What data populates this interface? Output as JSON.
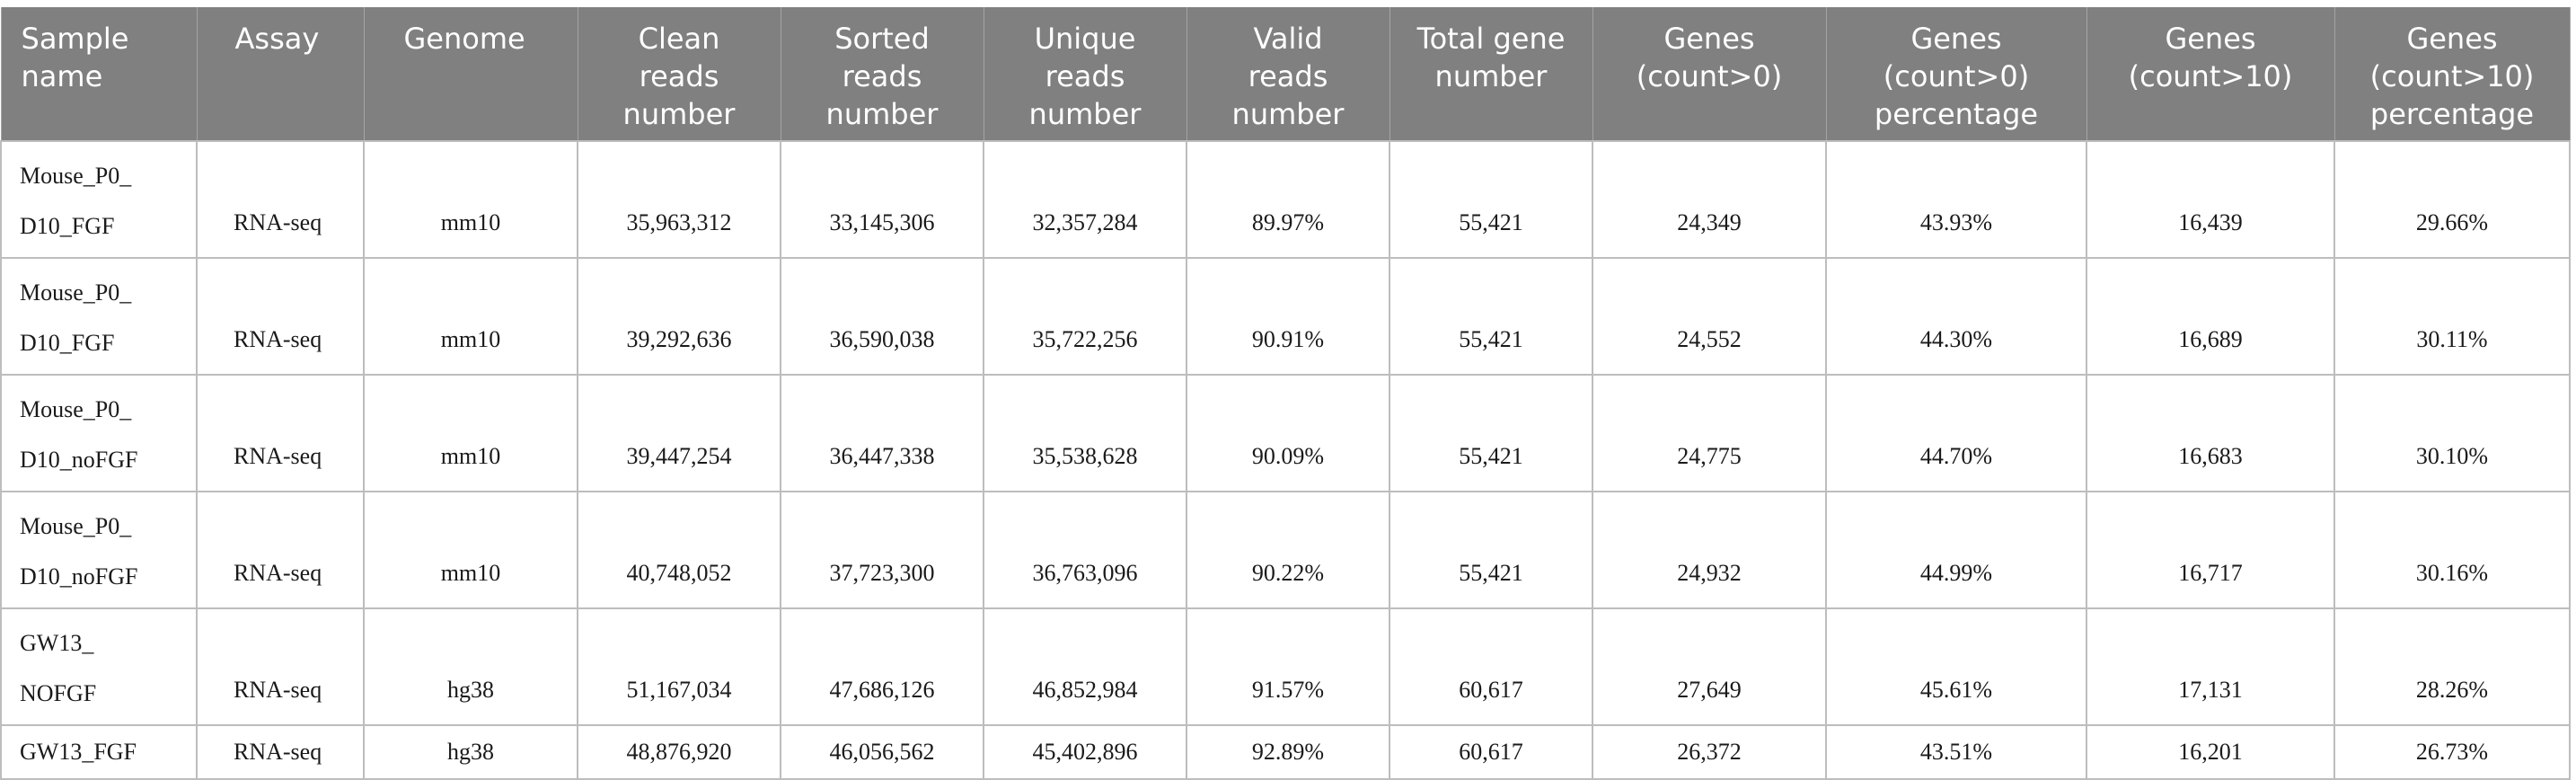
{
  "table": {
    "headers": [
      "Sample\nname",
      "Assay",
      "Genome",
      "Clean\nreads\nnumber",
      "Sorted\nreads\nnumber",
      "Unique\nreads\nnumber",
      "Valid\nreads\nnumber",
      "Total gene\nnumber",
      "Genes\n(count>0)",
      "Genes\n(count>0)\npercentage",
      "Genes\n(count>10)",
      "Genes\n(count>10)\npercentage"
    ],
    "rows": [
      [
        "Mouse_P0_\nD10_FGF",
        "RNA-seq",
        "mm10",
        "35,963,312",
        "33,145,306",
        "32,357,284",
        "89.97%",
        "55,421",
        "24,349",
        "43.93%",
        "16,439",
        "29.66%"
      ],
      [
        "Mouse_P0_\nD10_FGF",
        "RNA-seq",
        "mm10",
        "39,292,636",
        "36,590,038",
        "35,722,256",
        "90.91%",
        "55,421",
        "24,552",
        "44.30%",
        "16,689",
        "30.11%"
      ],
      [
        "Mouse_P0_\nD10_noFGF",
        "RNA-seq",
        "mm10",
        "39,447,254",
        "36,447,338",
        "35,538,628",
        "90.09%",
        "55,421",
        "24,775",
        "44.70%",
        "16,683",
        "30.10%"
      ],
      [
        "Mouse_P0_\nD10_noFGF",
        "RNA-seq",
        "mm10",
        "40,748,052",
        "37,723,300",
        "36,763,096",
        "90.22%",
        "55,421",
        "24,932",
        "44.99%",
        "16,717",
        "30.16%"
      ],
      [
        "GW13_\nNOFGF",
        "RNA-seq",
        "hg38",
        "51,167,034",
        "47,686,126",
        "46,852,984",
        "91.57%",
        "60,617",
        "27,649",
        "45.61%",
        "17,131",
        "28.26%"
      ],
      [
        "GW13_FGF",
        "RNA-seq",
        "hg38",
        "48,876,920",
        "46,056,562",
        "45,402,896",
        "92.89%",
        "60,617",
        "26,372",
        "43.51%",
        "16,201",
        "26.73%"
      ]
    ]
  }
}
